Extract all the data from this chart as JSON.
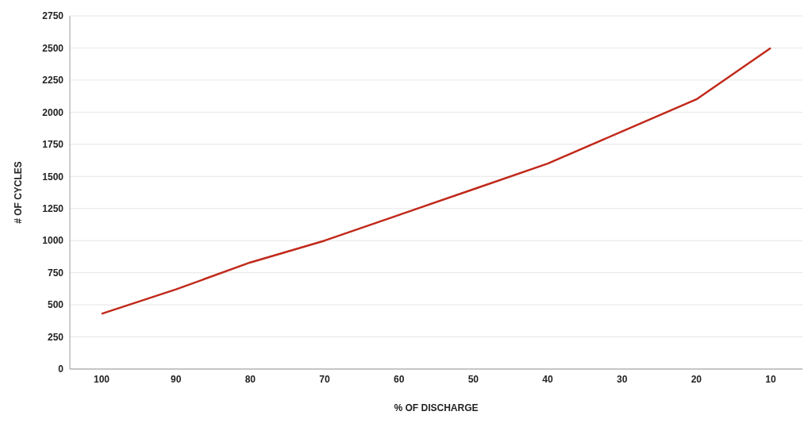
{
  "chart_data": {
    "type": "line",
    "xlabel": "% OF DISCHARGE",
    "ylabel": "# OF CYCLES",
    "categories": [
      "100",
      "90",
      "80",
      "70",
      "60",
      "50",
      "40",
      "30",
      "20",
      "10"
    ],
    "series": [
      {
        "color": "#c0291a",
        "values": [
          430,
          620,
          830,
          1000,
          1200,
          1400,
          1600,
          1850,
          2100,
          2500
        ]
      }
    ],
    "ylim": [
      0,
      2750
    ],
    "yticks": [
      0,
      250,
      500,
      750,
      1000,
      1250,
      1500,
      1750,
      2000,
      2250,
      2500,
      2750
    ],
    "grid": "y",
    "marker": "none",
    "line_style": "solid",
    "legend": false
  }
}
